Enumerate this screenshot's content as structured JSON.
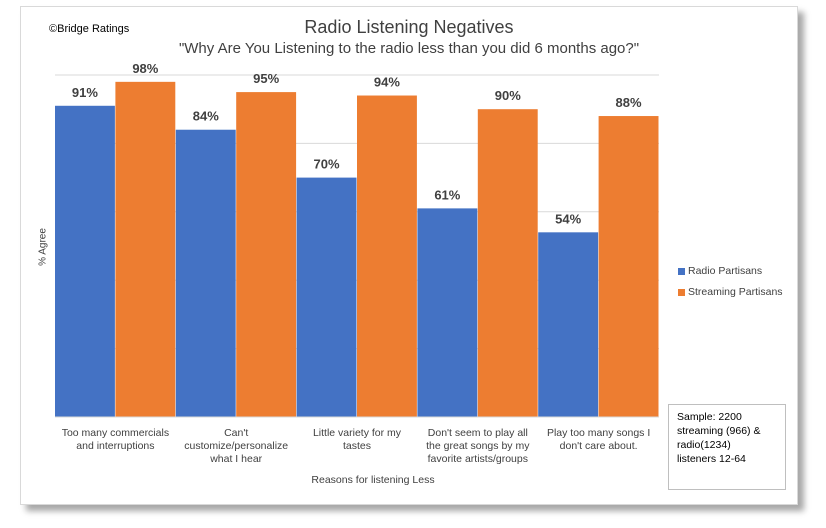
{
  "copyright": "©Bridge Ratings",
  "note": {
    "lines": [
      "Sample: 2200",
      "streaming (966) &",
      "radio(1234)",
      "listeners 12-64"
    ]
  },
  "chart_data": {
    "type": "bar",
    "title": "Radio Listening Negatives",
    "subtitle": "\"Why Are You Listening to the radio less than you did 6 months ago?\"",
    "xlabel": "Reasons for listening Less",
    "ylabel": "% Agree",
    "ylim": [
      0,
      100
    ],
    "grid": true,
    "legend_position": "right",
    "categories": [
      [
        "Too many commercials",
        "and interruptions"
      ],
      [
        "Can't",
        "customize/personalize",
        "what I hear"
      ],
      [
        "Little variety for my",
        "tastes"
      ],
      [
        "Don't seem to play all",
        "the great songs by my",
        "favorite artists/groups"
      ],
      [
        "Play too many songs I",
        "don't care about."
      ]
    ],
    "series": [
      {
        "name": "Radio Partisans",
        "color": "#4472C4",
        "values": [
          91,
          84,
          70,
          61,
          54
        ],
        "labels": [
          "91%",
          "84%",
          "70%",
          "61%",
          "54%"
        ]
      },
      {
        "name": "Streaming Partisans",
        "color": "#ED7D31",
        "values": [
          98,
          95,
          94,
          90,
          88
        ],
        "labels": [
          "98%",
          "95%",
          "94%",
          "90%",
          "88%"
        ]
      }
    ]
  }
}
